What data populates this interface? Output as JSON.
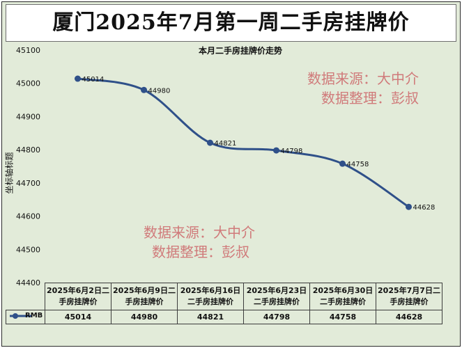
{
  "header": {
    "title": "厦门2025年7月第一周二手房挂牌价"
  },
  "watermark": {
    "line1": "数据来源：大中介",
    "line2": "数据整理：彭叔"
  },
  "chart_data": {
    "type": "line",
    "title": "本月二手房挂牌价走势",
    "ylabel": "坐标轴标题",
    "ylim": [
      44400,
      45100
    ],
    "yticks": [
      45100,
      45000,
      44900,
      44800,
      44700,
      44600,
      44500,
      44400
    ],
    "categories": [
      "2025年6月2日二手房挂牌价",
      "2025年6月9日二手房挂牌价",
      "2025年6月16日二手房挂牌价",
      "2025年6月23日二手房挂牌价",
      "2025年6月30日二手房挂牌价",
      "2025年7月7日二手房挂牌价"
    ],
    "category_lines": [
      [
        "2025年6月2日二",
        "手房挂牌价"
      ],
      [
        "2025年6月9日二",
        "手房挂牌价"
      ],
      [
        "2025年6月16日",
        "二手房挂牌价"
      ],
      [
        "2025年6月23日",
        "二手房挂牌价"
      ],
      [
        "2025年6月30日",
        "二手房挂牌价"
      ],
      [
        "2025年7月7日二",
        "手房挂牌价"
      ]
    ],
    "series": [
      {
        "name": "RMB",
        "values": [
          45014,
          44980,
          44821,
          44798,
          44758,
          44628
        ]
      }
    ],
    "grid": false,
    "line_color": "#2f5089",
    "data_table": true
  }
}
